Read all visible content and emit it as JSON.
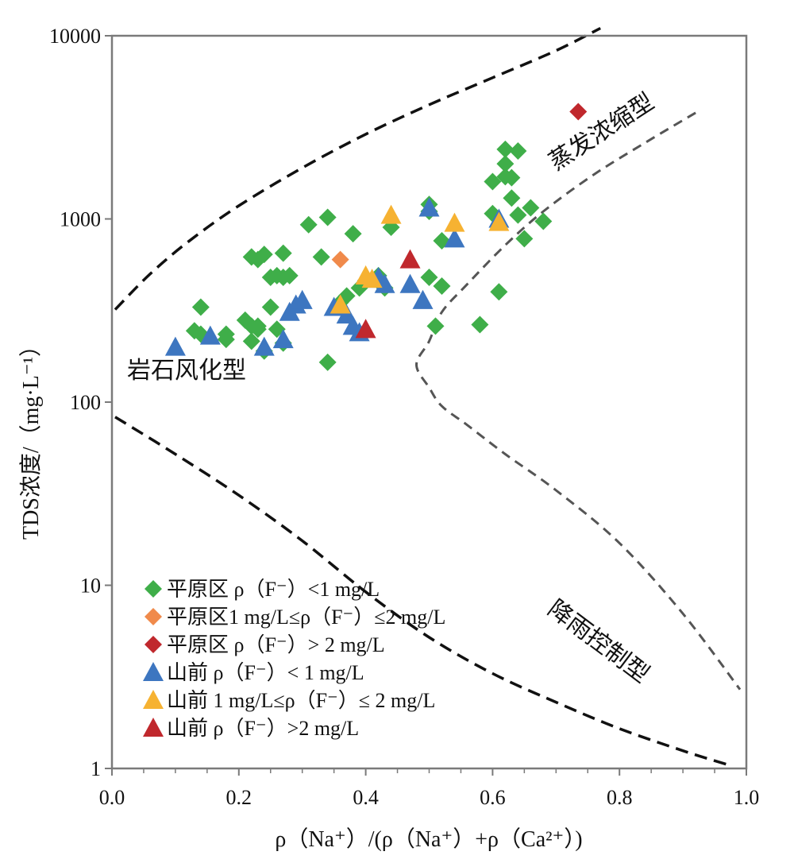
{
  "chart_data": {
    "type": "scatter",
    "xlabel": "ρ（Na⁺）/(ρ（Na⁺）+ρ（Ca²⁺）)",
    "ylabel": "TDS浓度/（mg·L⁻¹）",
    "xlim": [
      0.0,
      1.0
    ],
    "ylim": [
      1,
      10000
    ],
    "yscale": "log",
    "x_ticks": [
      "0.0",
      "0.2",
      "0.4",
      "0.6",
      "0.8",
      "1.0"
    ],
    "x_tick_values": [
      0.0,
      0.2,
      0.4,
      0.6,
      0.8,
      1.0
    ],
    "y_ticks": [
      "1",
      "10",
      "100",
      "1000",
      "10000"
    ],
    "y_tick_values": [
      1,
      10,
      100,
      1000,
      10000
    ],
    "grid": false,
    "legend_position": "bottom-left",
    "region_labels": {
      "rock": "岩石风化型",
      "evap": "蒸发浓缩型",
      "rain": "降雨控制型"
    },
    "boundary_curves": [
      {
        "style": "dashed-black",
        "points": [
          [
            0.005,
            320
          ],
          [
            0.06,
            500
          ],
          [
            0.12,
            750
          ],
          [
            0.2,
            1180
          ],
          [
            0.3,
            1900
          ],
          [
            0.4,
            2900
          ],
          [
            0.5,
            4200
          ],
          [
            0.6,
            5900
          ],
          [
            0.7,
            8300
          ],
          [
            0.77,
            11000
          ]
        ]
      },
      {
        "style": "dashed-black",
        "points": [
          [
            0.005,
            83
          ],
          [
            0.1,
            52
          ],
          [
            0.2,
            31
          ],
          [
            0.3,
            17.5
          ],
          [
            0.4,
            9.2
          ],
          [
            0.5,
            5.2
          ],
          [
            0.6,
            3.3
          ],
          [
            0.7,
            2.3
          ],
          [
            0.8,
            1.65
          ],
          [
            0.9,
            1.25
          ],
          [
            0.97,
            1.05
          ]
        ]
      },
      {
        "style": "dashed-gray",
        "points": [
          [
            0.92,
            3800
          ],
          [
            0.84,
            2600
          ],
          [
            0.76,
            1750
          ],
          [
            0.68,
            1100
          ],
          [
            0.62,
            720
          ],
          [
            0.56,
            440
          ],
          [
            0.52,
            310
          ],
          [
            0.5,
            215
          ],
          [
            0.48,
            160
          ],
          [
            0.5,
            120
          ],
          [
            0.52,
            95
          ],
          [
            0.56,
            75
          ],
          [
            0.62,
            52
          ],
          [
            0.7,
            33
          ],
          [
            0.8,
            17
          ],
          [
            0.9,
            7
          ],
          [
            0.99,
            2.7
          ]
        ]
      }
    ],
    "series": [
      {
        "name": "平原区 ρ（F⁻）<1 mg/L",
        "marker": "diamond",
        "color": "#3fae49",
        "x": [
          0.14,
          0.13,
          0.14,
          0.18,
          0.18,
          0.21,
          0.22,
          0.22,
          0.23,
          0.24,
          0.23,
          0.25,
          0.25,
          0.26,
          0.27,
          0.27,
          0.28,
          0.26,
          0.27,
          0.22,
          0.23,
          0.24,
          0.22,
          0.33,
          0.31,
          0.34,
          0.38,
          0.34,
          0.36,
          0.37,
          0.39,
          0.4,
          0.42,
          0.43,
          0.44,
          0.5,
          0.5,
          0.51,
          0.52,
          0.52,
          0.5,
          0.6,
          0.6,
          0.62,
          0.62,
          0.62,
          0.63,
          0.63,
          0.64,
          0.65,
          0.66,
          0.64,
          0.68,
          0.58,
          0.61
        ],
        "y": [
          330,
          245,
          235,
          235,
          220,
          280,
          260,
          620,
          250,
          190,
          260,
          480,
          330,
          490,
          650,
          480,
          490,
          250,
          210,
          620,
          600,
          640,
          215,
          620,
          930,
          1020,
          830,
          165,
          350,
          380,
          420,
          460,
          490,
          420,
          900,
          1200,
          480,
          260,
          760,
          430,
          1100,
          1070,
          1600,
          1700,
          2000,
          2400,
          1680,
          1300,
          2350,
          780,
          1150,
          1050,
          970,
          265,
          400
        ]
      },
      {
        "name": "平原区1 mg/L≤ρ（F⁻）≤2 mg/L",
        "marker": "diamond",
        "color": "#f08a4b",
        "x": [
          0.36
        ],
        "y": [
          600
        ]
      },
      {
        "name": "平原区 ρ（F⁻）> 2 mg/L",
        "marker": "diamond",
        "color": "#c0282d",
        "x": [
          0.735
        ],
        "y": [
          3850
        ]
      },
      {
        "name": "山前 ρ（F⁻）< 1 mg/L",
        "marker": "triangle",
        "color": "#3d76c0",
        "x": [
          0.1,
          0.155,
          0.24,
          0.27,
          0.28,
          0.29,
          0.3,
          0.35,
          0.37,
          0.39,
          0.42,
          0.43,
          0.47,
          0.49,
          0.5,
          0.54,
          0.61,
          0.38,
          0.42
        ],
        "y": [
          200,
          230,
          200,
          220,
          310,
          340,
          360,
          330,
          300,
          240,
          480,
          440,
          440,
          360,
          1150,
          780,
          1000,
          260,
          470
        ]
      },
      {
        "name": "山前 1 mg/L≤ρ（F⁻）≤ 2 mg/L",
        "marker": "triangle",
        "color": "#f6b232",
        "x": [
          0.36,
          0.4,
          0.44,
          0.54,
          0.61,
          0.41
        ],
        "y": [
          340,
          490,
          1050,
          950,
          960,
          470
        ]
      },
      {
        "name": "山前 ρ（F⁻）>2 mg/L",
        "marker": "triangle",
        "color": "#c0282d",
        "x": [
          0.47,
          0.4
        ],
        "y": [
          600,
          250
        ]
      }
    ]
  }
}
